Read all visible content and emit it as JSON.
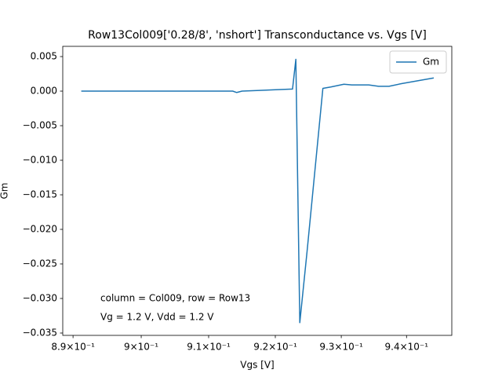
{
  "chart_data": {
    "type": "line",
    "title": "Row13Col009['0.28/8', 'nshort'] Transconductance vs. Vgs [V]",
    "x_label": "Vgs [V]",
    "y_label": "Gm",
    "xscale": "log",
    "xlim": [
      0.8885,
      0.947
    ],
    "ylim": [
      -0.03534,
      0.00648
    ],
    "xticks": [
      {
        "value": 0.89,
        "label": "8.9×10⁻¹"
      },
      {
        "value": 0.9,
        "label": "9×10⁻¹"
      },
      {
        "value": 0.91,
        "label": "9.1×10⁻¹"
      },
      {
        "value": 0.92,
        "label": "9.2×10⁻¹"
      },
      {
        "value": 0.93,
        "label": "9.3×10⁻¹"
      },
      {
        "value": 0.94,
        "label": "9.4×10⁻¹"
      }
    ],
    "yticks": [
      0.005,
      {
        "value": 0,
        "label": "0.000"
      },
      {
        "value": -0.005,
        "label": "−0.005"
      },
      {
        "value": -0.01,
        "label": "−0.010"
      },
      {
        "value": -0.015,
        "label": "−0.015"
      },
      {
        "value": -0.02,
        "label": "−0.020"
      },
      {
        "value": -0.025,
        "label": "−0.025"
      },
      {
        "value": -0.03,
        "label": "−0.030"
      },
      {
        "value": -0.035,
        "label": "−0.035"
      }
    ],
    "x": [
      0.8912,
      0.8915,
      0.9023,
      0.9128,
      0.9136,
      0.9142,
      0.915,
      0.9176,
      0.92,
      0.9226,
      0.9231,
      0.9237,
      0.9248,
      0.9272,
      0.9284,
      0.9304,
      0.9316,
      0.9342,
      0.9357,
      0.9373,
      0.9393,
      0.9442
    ],
    "series": [
      {
        "name": "Gm",
        "color": "#1f77b4",
        "values": [
          0.0,
          0.0,
          0.0,
          0.0,
          0.0,
          -0.0002,
          0.0,
          0.0001,
          0.0002,
          0.0003,
          0.0046,
          -0.0335,
          -0.0232,
          0.0004,
          0.0006,
          0.001,
          0.0009,
          0.0009,
          0.0007,
          0.0007,
          0.0011,
          0.0019
        ]
      }
    ],
    "legend": "upper right",
    "annotations": [
      "column = Col009, row = Row13",
      "Vg = 1.2 V, Vdd = 1.2 V"
    ]
  }
}
